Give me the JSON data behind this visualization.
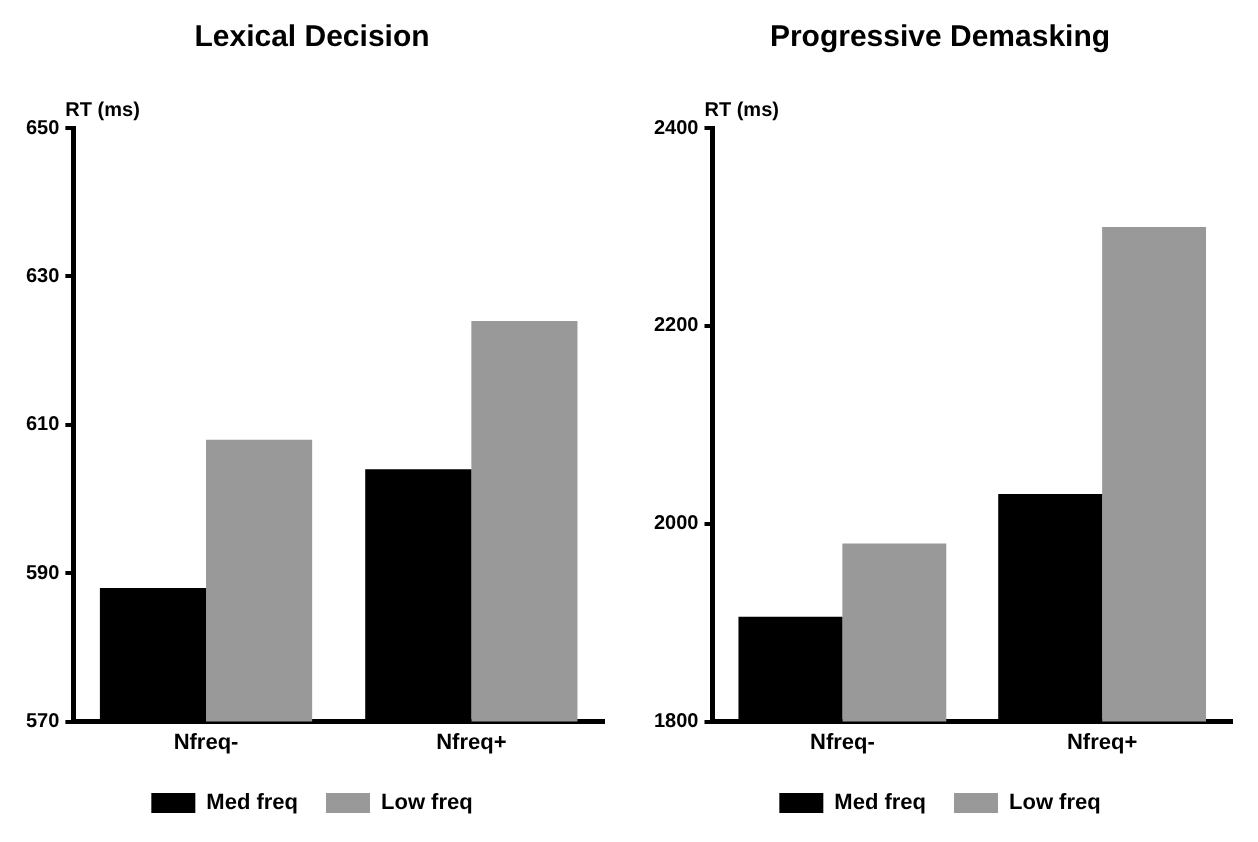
{
  "chart_data": [
    {
      "type": "bar",
      "title": "Lexical Decision",
      "ylabel": "RT (ms)",
      "categories": [
        "Nfreq-",
        "Nfreq+"
      ],
      "series": [
        {
          "name": "Med freq",
          "color": "#000000",
          "values": [
            588,
            604
          ]
        },
        {
          "name": "Low freq",
          "color": "#999999",
          "values": [
            608,
            624
          ]
        }
      ],
      "ylim": [
        570,
        650
      ],
      "yticks": [
        570,
        590,
        610,
        630,
        650
      ],
      "grid": false,
      "legend": "bottom"
    },
    {
      "type": "bar",
      "title": "Progressive Demasking",
      "ylabel": "RT (ms)",
      "categories": [
        "Nfreq-",
        "Nfreq+"
      ],
      "series": [
        {
          "name": "Med freq",
          "color": "#000000",
          "values": [
            1906,
            2030
          ]
        },
        {
          "name": "Low freq",
          "color": "#999999",
          "values": [
            1980,
            2300
          ]
        }
      ],
      "ylim": [
        1800,
        2400
      ],
      "yticks": [
        1800,
        2000,
        2200,
        2400
      ],
      "grid": false,
      "legend": "bottom"
    }
  ]
}
